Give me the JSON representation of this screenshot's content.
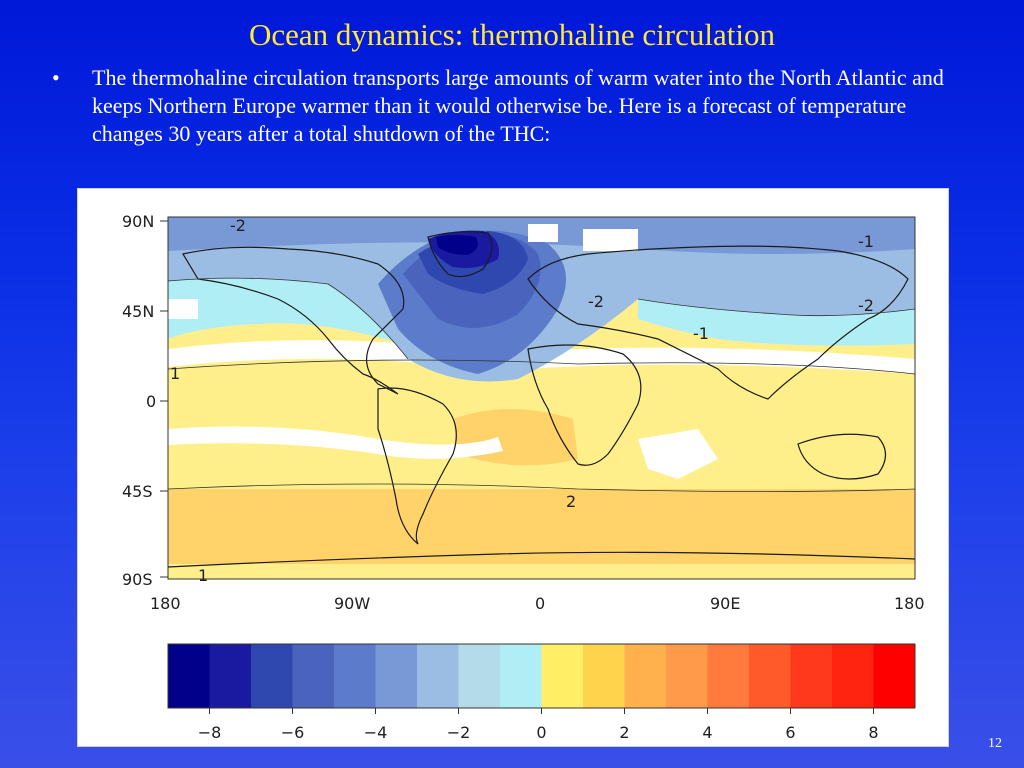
{
  "slide": {
    "title": "Ocean dynamics: thermohaline circulation",
    "bullet_symbol": "•",
    "bullet_text": "The thermohaline circulation transports large amounts of warm water into the North Atlantic and keeps Northern Europe warmer than it would otherwise be. Here is a forecast of temperature changes 30 years after a total shutdown of the THC:",
    "page_number": "12"
  },
  "map": {
    "lat_labels": [
      "90N",
      "45N",
      "0",
      "45S",
      "90S"
    ],
    "lon_labels": [
      "180",
      "90W",
      "0",
      "90E",
      "180"
    ],
    "contour_labels": [
      "-2",
      "-2",
      "-1",
      "-1",
      "1",
      "1",
      "-2",
      "2"
    ]
  },
  "colorbar": {
    "colors": [
      "#00008b",
      "#1a1aa0",
      "#2f48b0",
      "#4a63bd",
      "#5c7bca",
      "#7899d6",
      "#9bbde3",
      "#b3dbe9",
      "#b0eef6",
      "#ffee66",
      "#ffd44c",
      "#ffb14e",
      "#ff9a4a",
      "#ff7a3c",
      "#ff5a2a",
      "#ff3a1c",
      "#ff2410",
      "#ff0000"
    ],
    "tick_labels": [
      "−8",
      "−6",
      "−4",
      "−2",
      "0",
      "2",
      "4",
      "6",
      "8"
    ]
  }
}
